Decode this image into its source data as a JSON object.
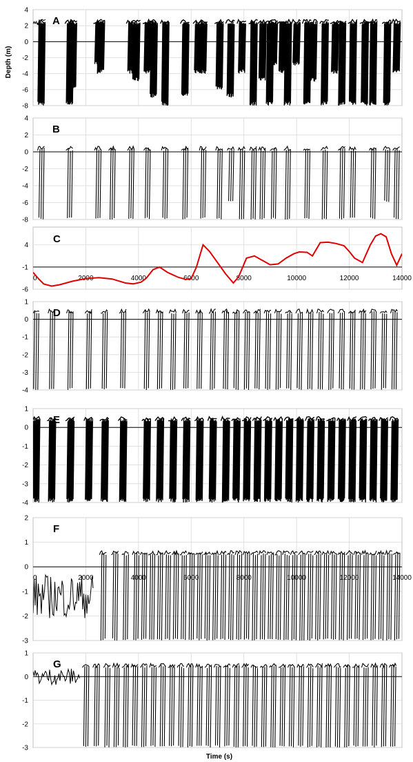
{
  "figure": {
    "xlabel": "Time (s)",
    "ylabel": "Depth (m)"
  },
  "colors": {
    "trace": "#000000",
    "pathline": "#e00000",
    "grid": "#d9d9d9",
    "frame": "#bfbfbf"
  },
  "chart_data": [
    {
      "panel": "A",
      "type": "line",
      "ylabel": "Depth (m)",
      "ylim": [
        -8,
        4
      ],
      "yticks": [
        "4",
        "2",
        "0",
        "-2",
        "-4",
        "-6",
        "-8"
      ],
      "xlim": [
        0,
        14000
      ],
      "xticks": [],
      "grid": true,
      "series": [
        {
          "style": "dense",
          "x": [
            300,
            1380,
            1500,
            2460,
            2560,
            3710,
            3900,
            4330,
            4560,
            5000,
            5760,
            6240,
            6440,
            7060,
            7480,
            7910,
            8350,
            8690,
            8970,
            9120,
            9450,
            9650,
            9980,
            10390,
            10620,
            11050,
            11440,
            11710,
            12120,
            12570,
            12890,
            13420,
            13780
          ],
          "y": [
            -8,
            -8,
            -6,
            -3,
            -4,
            -4,
            -5,
            -4,
            -7,
            -8,
            -7,
            -4,
            -4,
            -6,
            -7,
            -4,
            -8,
            -5,
            -8,
            -3,
            -4,
            -8,
            -3,
            -8,
            -5,
            -8,
            -4,
            -8,
            -8,
            -8,
            -8,
            -8,
            -4
          ]
        }
      ]
    },
    {
      "panel": "B",
      "type": "line",
      "ylim": [
        -8,
        4
      ],
      "yticks": [
        "4",
        "2",
        "0",
        "-2",
        "-4",
        "-6",
        "-8"
      ],
      "xlim": [
        0,
        14000
      ],
      "xticks": [],
      "grid": true,
      "series": [
        {
          "style": "sparse",
          "x": [
            300,
            1380,
            2460,
            3000,
            3710,
            4330,
            5000,
            5760,
            6440,
            7060,
            7500,
            7910,
            8350,
            8690,
            9120,
            9650,
            10390,
            11050,
            11710,
            12120,
            12890,
            13420,
            13780
          ],
          "y": [
            -8,
            -8,
            -8,
            -8,
            -8,
            -8,
            -8,
            -8,
            -8,
            -8,
            -6,
            -8,
            -8,
            -8,
            -8,
            -8,
            -8,
            -8,
            -8,
            -8,
            -8,
            -6,
            -8
          ]
        }
      ]
    },
    {
      "panel": "C",
      "type": "line",
      "ylim": [
        -6,
        8
      ],
      "yticks": [
        "4",
        "-1",
        "-6"
      ],
      "xlim": [
        0,
        14000
      ],
      "xticks": [
        "0",
        "2000",
        "4000",
        "6000",
        "8000",
        "10000",
        "12000",
        "14000"
      ],
      "grid": true,
      "series": [
        {
          "x": [
            0,
            200,
            400,
            700,
            1000,
            1500,
            2000,
            2500,
            3000,
            3500,
            3800,
            4100,
            4300,
            4550,
            4800,
            5100,
            5500,
            5800,
            6000,
            6200,
            6450,
            6700,
            7000,
            7300,
            7600,
            7800,
            8100,
            8400,
            8700,
            9000,
            9300,
            9600,
            9900,
            10100,
            10400,
            10600,
            10900,
            11200,
            11500,
            11800,
            12000,
            12200,
            12500,
            12800,
            13000,
            13200,
            13400,
            13600,
            13800,
            14000
          ],
          "y": [
            -2.2,
            -3.6,
            -4.8,
            -5.3,
            -5.0,
            -4.2,
            -3.6,
            -3.4,
            -3.7,
            -4.6,
            -4.8,
            -4.4,
            -3.5,
            -1.6,
            -1.0,
            -2.2,
            -3.3,
            -3.8,
            -3.6,
            -1.0,
            4.0,
            2.5,
            0.0,
            -2.5,
            -4.6,
            -3.2,
            1.0,
            1.5,
            0.5,
            -0.5,
            -0.3,
            1.0,
            2.0,
            2.4,
            2.3,
            1.5,
            4.5,
            4.6,
            4.3,
            3.8,
            2.5,
            1.0,
            0.0,
            4.0,
            6.0,
            6.5,
            5.8,
            2.0,
            -0.6,
            2.0
          ]
        }
      ]
    },
    {
      "panel": "D",
      "type": "line",
      "ylim": [
        -4,
        1
      ],
      "yticks": [
        "1",
        "0",
        "-1",
        "-2",
        "-3",
        "-4"
      ],
      "xlim": [
        0,
        14000
      ],
      "xticks": [],
      "grid": true,
      "series": [
        {
          "style": "sparse",
          "x": [
            100,
            700,
            1400,
            2100,
            2700,
            3400,
            4300,
            4800,
            5300,
            5800,
            6300,
            6800,
            7300,
            7700,
            8100,
            8500,
            8900,
            9300,
            9700,
            10100,
            10500,
            10900,
            11300,
            11700,
            12100,
            12500,
            12900,
            13300,
            13700
          ],
          "y": [
            -4,
            -4,
            -4,
            -4,
            -4,
            -4,
            -4,
            -4,
            -4,
            -4,
            -4,
            -4,
            -4,
            -4,
            -4,
            -4,
            -4,
            -4,
            -4,
            -4,
            -4,
            -4,
            -4,
            -4,
            -4,
            -4,
            -4,
            -4,
            -4
          ]
        }
      ]
    },
    {
      "panel": "E",
      "type": "line",
      "ylim": [
        -4,
        1
      ],
      "yticks": [
        "1",
        "0",
        "-1",
        "-2",
        "-3",
        "-4"
      ],
      "xlim": [
        0,
        14000
      ],
      "xticks": [],
      "grid": true,
      "series": [
        {
          "style": "dense",
          "x": [
            100,
            700,
            1400,
            2100,
            2700,
            3400,
            4300,
            4800,
            5300,
            5800,
            6300,
            6800,
            7300,
            7700,
            8100,
            8500,
            8900,
            9300,
            9700,
            10100,
            10500,
            10900,
            11300,
            11700,
            12100,
            12500,
            12900,
            13300,
            13700
          ],
          "y": [
            -4,
            -4,
            -4,
            -4,
            -4,
            -4,
            -4,
            -4,
            -4,
            -4,
            -4,
            -4,
            -4,
            -4,
            -4,
            -4,
            -4,
            -4,
            -4,
            -4,
            -4,
            -4,
            -4,
            -4,
            -4,
            -4,
            -4,
            -4,
            -4
          ]
        }
      ]
    },
    {
      "panel": "F",
      "type": "line",
      "ylim": [
        -3,
        2
      ],
      "yticks": [
        "2",
        "1",
        "0",
        "-1",
        "-2",
        "-3"
      ],
      "xlim": [
        0,
        14000
      ],
      "xticks": [
        "0",
        "2000",
        "4000",
        "6000",
        "8000",
        "10000",
        "12000",
        "14000"
      ],
      "grid": true,
      "series": [
        {
          "style": "sparse",
          "x": [
            2650,
            3100,
            3500,
            3900,
            4200,
            4500,
            4800,
            5100,
            5400,
            5700,
            6000,
            6300,
            6600,
            6900,
            7200,
            7500,
            7800,
            8100,
            8400,
            8700,
            9000,
            9300,
            9600,
            9900,
            10200,
            10500,
            10800,
            11100,
            11400,
            11700,
            12000,
            12300,
            12600,
            12900,
            13200,
            13500,
            13800
          ],
          "y": [
            -3,
            -3,
            -3,
            -3,
            -3,
            -3,
            -3,
            -3,
            -3,
            -3,
            -3,
            -3,
            -3,
            -3,
            -3,
            -3,
            -3,
            -3,
            -3,
            -3,
            -3,
            -3,
            -3,
            -3,
            -3,
            -3,
            -3,
            -3,
            -3,
            -3,
            -3,
            -3,
            -3,
            -3,
            -3,
            -3,
            -3
          ]
        }
      ]
    },
    {
      "panel": "G",
      "type": "line",
      "ylim": [
        -3,
        1
      ],
      "yticks": [
        "1",
        "0",
        "-1",
        "-2",
        "-3"
      ],
      "xlim": [
        0,
        14000
      ],
      "xticks": [],
      "grid": true,
      "series": [
        {
          "style": "sparse",
          "x": [
            2000,
            2400,
            2800,
            3150,
            3500,
            3850,
            4200,
            4550,
            4900,
            5250,
            5600,
            5950,
            6300,
            6650,
            7000,
            7350,
            7700,
            8050,
            8400,
            8750,
            9100,
            9450,
            9800,
            10150,
            10500,
            10850,
            11200,
            11550,
            11900,
            12250,
            12600,
            12950,
            13300,
            13650
          ],
          "y": [
            -3,
            -3,
            -3,
            -3,
            -3,
            -3,
            -3,
            -3,
            -3,
            -3,
            -3,
            -3,
            -3,
            -3,
            -3,
            -3,
            -3,
            -3,
            -3,
            -3,
            -3,
            -3,
            -3,
            -3,
            -3,
            -3,
            -3,
            -3,
            -3,
            -3,
            -3,
            -3,
            -3,
            -3
          ]
        }
      ]
    }
  ]
}
